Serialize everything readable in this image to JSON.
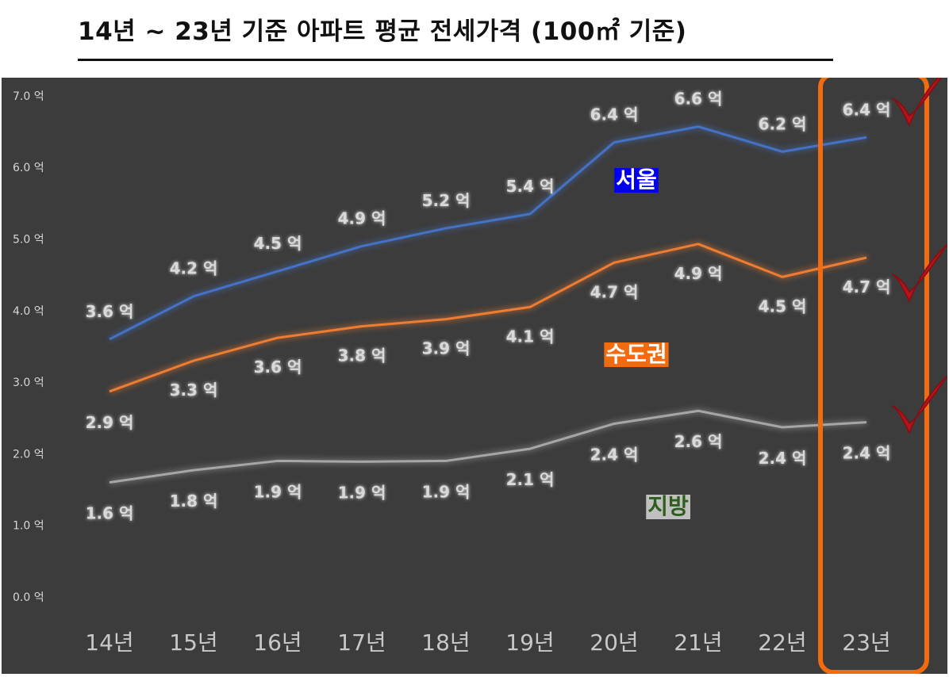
{
  "header": {
    "title": "14년 ~ 23년 기준 아파트 평균 전세가격 (100㎡ 기준)"
  },
  "colors": {
    "background": "#3c3c3c",
    "highlight_box": "#f26b0f",
    "check_mark": "#b3141b"
  },
  "chart_data": {
    "type": "line",
    "title": "14년 ~ 23년 기준 아파트 평균 전세가격 (100㎡ 기준)",
    "categories": [
      "14년",
      "15년",
      "16년",
      "17년",
      "18년",
      "19년",
      "20년",
      "21년",
      "22년",
      "23년"
    ],
    "ylim": [
      0,
      7
    ],
    "yticks": [
      "0.0 억",
      "1.0 억",
      "2.0 억",
      "3.0 억",
      "4.0 억",
      "5.0 억",
      "6.0 억",
      "7.0 억"
    ],
    "grid": false,
    "series": [
      {
        "name": "서울",
        "color": "#4472c4",
        "label_bg": "#0000ee",
        "label_color": "#ffffff",
        "values": [
          3.6,
          4.2,
          4.55,
          4.9,
          5.15,
          5.35,
          6.35,
          6.57,
          6.22,
          6.42
        ],
        "labels": [
          "3.6 억",
          "4.2 억",
          "4.5 억",
          "4.9 억",
          "5.2 억",
          "5.4 억",
          "6.4 억",
          "6.6 억",
          "6.2 억",
          "6.4 억"
        ]
      },
      {
        "name": "수도권",
        "color": "#ed7d31",
        "label_bg": "#f26b0f",
        "label_color": "#ffffff",
        "values": [
          2.87,
          3.3,
          3.62,
          3.78,
          3.88,
          4.05,
          4.67,
          4.93,
          4.47,
          4.74
        ],
        "labels": [
          "2.9 억",
          "3.3 억",
          "3.6 억",
          "3.8 억",
          "3.9 억",
          "4.1 억",
          "4.7 억",
          "4.9 억",
          "4.5 억",
          "4.7 억"
        ]
      },
      {
        "name": "지방",
        "color": "#a6a6a6",
        "label_bg": "#c0c0c0",
        "label_color": "#2e5d1e",
        "values": [
          1.6,
          1.77,
          1.9,
          1.89,
          1.9,
          2.07,
          2.42,
          2.6,
          2.37,
          2.44
        ],
        "labels": [
          "1.6 억",
          "1.8 억",
          "1.9 억",
          "1.9 억",
          "1.9 억",
          "2.1 억",
          "2.4 억",
          "2.6 억",
          "2.4 억",
          "2.4 억"
        ]
      }
    ]
  }
}
